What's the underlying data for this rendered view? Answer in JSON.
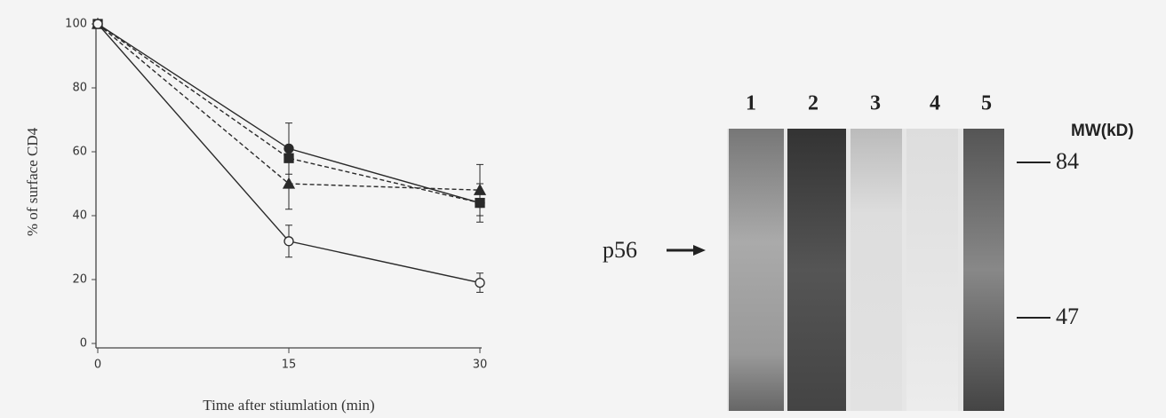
{
  "chart_data": {
    "type": "line",
    "x_label": "Time after stiumlation (min)",
    "y_label": "% of surface CD4",
    "x": [
      0,
      15,
      30
    ],
    "series": [
      {
        "color": "#2a2a2a",
        "marker": "circle",
        "filled": true,
        "dashed": false,
        "values": [
          100,
          61,
          44
        ],
        "errors": [
          null,
          8,
          null
        ]
      },
      {
        "color": "#2a2a2a",
        "marker": "square",
        "filled": true,
        "dashed": true,
        "values": [
          100,
          58,
          44
        ],
        "errors": [
          null,
          null,
          6
        ]
      },
      {
        "color": "#2a2a2a",
        "marker": "triangle",
        "filled": true,
        "dashed": true,
        "values": [
          100,
          50,
          48
        ],
        "errors": [
          null,
          8,
          8
        ]
      },
      {
        "color": "#2a2a2a",
        "marker": "circle",
        "filled": false,
        "dashed": false,
        "values": [
          100,
          32,
          19
        ],
        "errors": [
          null,
          5,
          3
        ]
      }
    ],
    "xlim": [
      0,
      30
    ],
    "xticks": [
      0,
      15,
      30
    ],
    "ylim": [
      0,
      100
    ],
    "yticks": [
      0,
      20,
      40,
      60,
      80,
      100
    ]
  },
  "gel": {
    "lanes": [
      "1",
      "2",
      "3",
      "4",
      "5"
    ],
    "mw_title": "MW(kD)",
    "markers": [
      "84",
      "47"
    ],
    "band_label": "p56"
  }
}
